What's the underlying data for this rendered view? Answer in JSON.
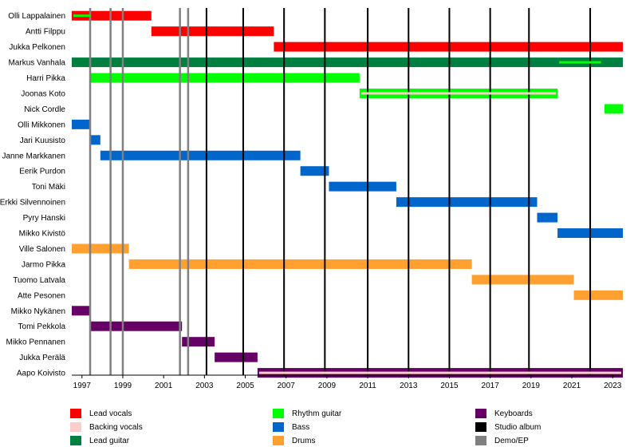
{
  "chart_data": {
    "type": "timeline",
    "x_range": [
      1996.5,
      2023.5
    ],
    "x_ticks": [
      "1997",
      "1999",
      "2001",
      "2003",
      "2005",
      "2007",
      "2009",
      "2011",
      "2013",
      "2015",
      "2017",
      "2019",
      "2021",
      "2023"
    ],
    "members": [
      {
        "name": "Olli Lappalainen",
        "periods": [
          {
            "role": "Lead vocals",
            "start": 1996.5,
            "end": 2000.4
          },
          {
            "role": "Rhythm guitar",
            "start": 1996.5,
            "end": 1997.5,
            "sub": true
          }
        ]
      },
      {
        "name": "Antti Filppu",
        "periods": [
          {
            "role": "Lead vocals",
            "start": 2000.4,
            "end": 2006.4
          }
        ]
      },
      {
        "name": "Jukka Pelkonen",
        "periods": [
          {
            "role": "Lead vocals",
            "start": 2006.4,
            "end": 2023.5
          }
        ]
      },
      {
        "name": "Markus Vanhala",
        "periods": [
          {
            "role": "Lead guitar",
            "start": 1996.5,
            "end": 2023.5
          },
          {
            "role": "Rhythm guitar",
            "start": 2020.3,
            "end": 2022.5,
            "sub": true
          }
        ]
      },
      {
        "name": "Harri Pikka",
        "periods": [
          {
            "role": "Rhythm guitar",
            "start": 1997.4,
            "end": 2010.6
          }
        ]
      },
      {
        "name": "Joonas Koto",
        "periods": [
          {
            "role": "Rhythm guitar",
            "start": 2010.6,
            "end": 2020.3
          },
          {
            "role": "Backing vocals",
            "start": 2010.6,
            "end": 2020.3,
            "sub": true
          }
        ]
      },
      {
        "name": "Nick Cordle",
        "periods": [
          {
            "role": "Rhythm guitar",
            "start": 2022.6,
            "end": 2023.5
          }
        ]
      },
      {
        "name": "Olli Mikkonen",
        "periods": [
          {
            "role": "Bass",
            "start": 1996.5,
            "end": 1997.4
          }
        ]
      },
      {
        "name": "Jari Kuusisto",
        "periods": [
          {
            "role": "Bass",
            "start": 1997.4,
            "end": 1997.9
          }
        ]
      },
      {
        "name": "Janne Markkanen",
        "periods": [
          {
            "role": "Bass",
            "start": 1997.9,
            "end": 2007.7
          }
        ]
      },
      {
        "name": "Eerik Purdon",
        "periods": [
          {
            "role": "Bass",
            "start": 2007.7,
            "end": 2009.1
          }
        ]
      },
      {
        "name": "Toni Mäki",
        "periods": [
          {
            "role": "Bass",
            "start": 2009.1,
            "end": 2012.4
          }
        ]
      },
      {
        "name": "Erkki Silvennoinen",
        "periods": [
          {
            "role": "Bass",
            "start": 2012.4,
            "end": 2019.3
          }
        ]
      },
      {
        "name": "Pyry Hanski",
        "periods": [
          {
            "role": "Bass",
            "start": 2019.3,
            "end": 2020.3
          }
        ]
      },
      {
        "name": "Mikko Kivistö",
        "periods": [
          {
            "role": "Bass",
            "start": 2020.3,
            "end": 2023.5
          }
        ]
      },
      {
        "name": "Ville Salonen",
        "periods": [
          {
            "role": "Drums",
            "start": 1996.5,
            "end": 1999.3
          }
        ]
      },
      {
        "name": "Jarmo Pikka",
        "periods": [
          {
            "role": "Drums",
            "start": 1999.3,
            "end": 2016.1
          }
        ]
      },
      {
        "name": "Tuomo Latvala",
        "periods": [
          {
            "role": "Drums",
            "start": 2016.1,
            "end": 2021.1
          }
        ]
      },
      {
        "name": "Atte Pesonen",
        "periods": [
          {
            "role": "Drums",
            "start": 2021.1,
            "end": 2023.5
          }
        ]
      },
      {
        "name": "Mikko Nykänen",
        "periods": [
          {
            "role": "Keyboards",
            "start": 1996.5,
            "end": 1997.4
          }
        ]
      },
      {
        "name": "Tomi Pekkola",
        "periods": [
          {
            "role": "Keyboards",
            "start": 1997.4,
            "end": 2001.9
          }
        ]
      },
      {
        "name": "Mikko Pennanen",
        "periods": [
          {
            "role": "Keyboards",
            "start": 2001.9,
            "end": 2003.5
          }
        ]
      },
      {
        "name": "Jukka Perälä",
        "periods": [
          {
            "role": "Keyboards",
            "start": 2003.5,
            "end": 2005.6
          }
        ]
      },
      {
        "name": "Aapo Koivisto",
        "periods": [
          {
            "role": "Keyboards",
            "start": 2005.6,
            "end": 2023.5
          },
          {
            "role": "Backing vocals",
            "start": 2005.6,
            "end": 2023.5,
            "sub": true
          }
        ]
      }
    ],
    "studio_albums": [
      2003.1,
      2004.9,
      2006.9,
      2008.9,
      2011.0,
      2013.0,
      2015.0,
      2017.0,
      2018.9,
      2021.9
    ],
    "demos": [
      1997.4,
      1998.4,
      1999.0,
      2001.8,
      2002.2
    ],
    "legend": [
      {
        "label": "Lead vocals",
        "color": "#ff0000"
      },
      {
        "label": "Backing vocals",
        "color": "#ffcccc"
      },
      {
        "label": "Lead guitar",
        "color": "#008040"
      },
      {
        "label": "Rhythm guitar",
        "color": "#00ff00"
      },
      {
        "label": "Bass",
        "color": "#0066cc"
      },
      {
        "label": "Drums",
        "color": "#ffa030"
      },
      {
        "label": "Keyboards",
        "color": "#660066"
      },
      {
        "label": "Studio album",
        "color": "#000000"
      },
      {
        "label": "Demo/EP",
        "color": "#808080"
      }
    ]
  }
}
